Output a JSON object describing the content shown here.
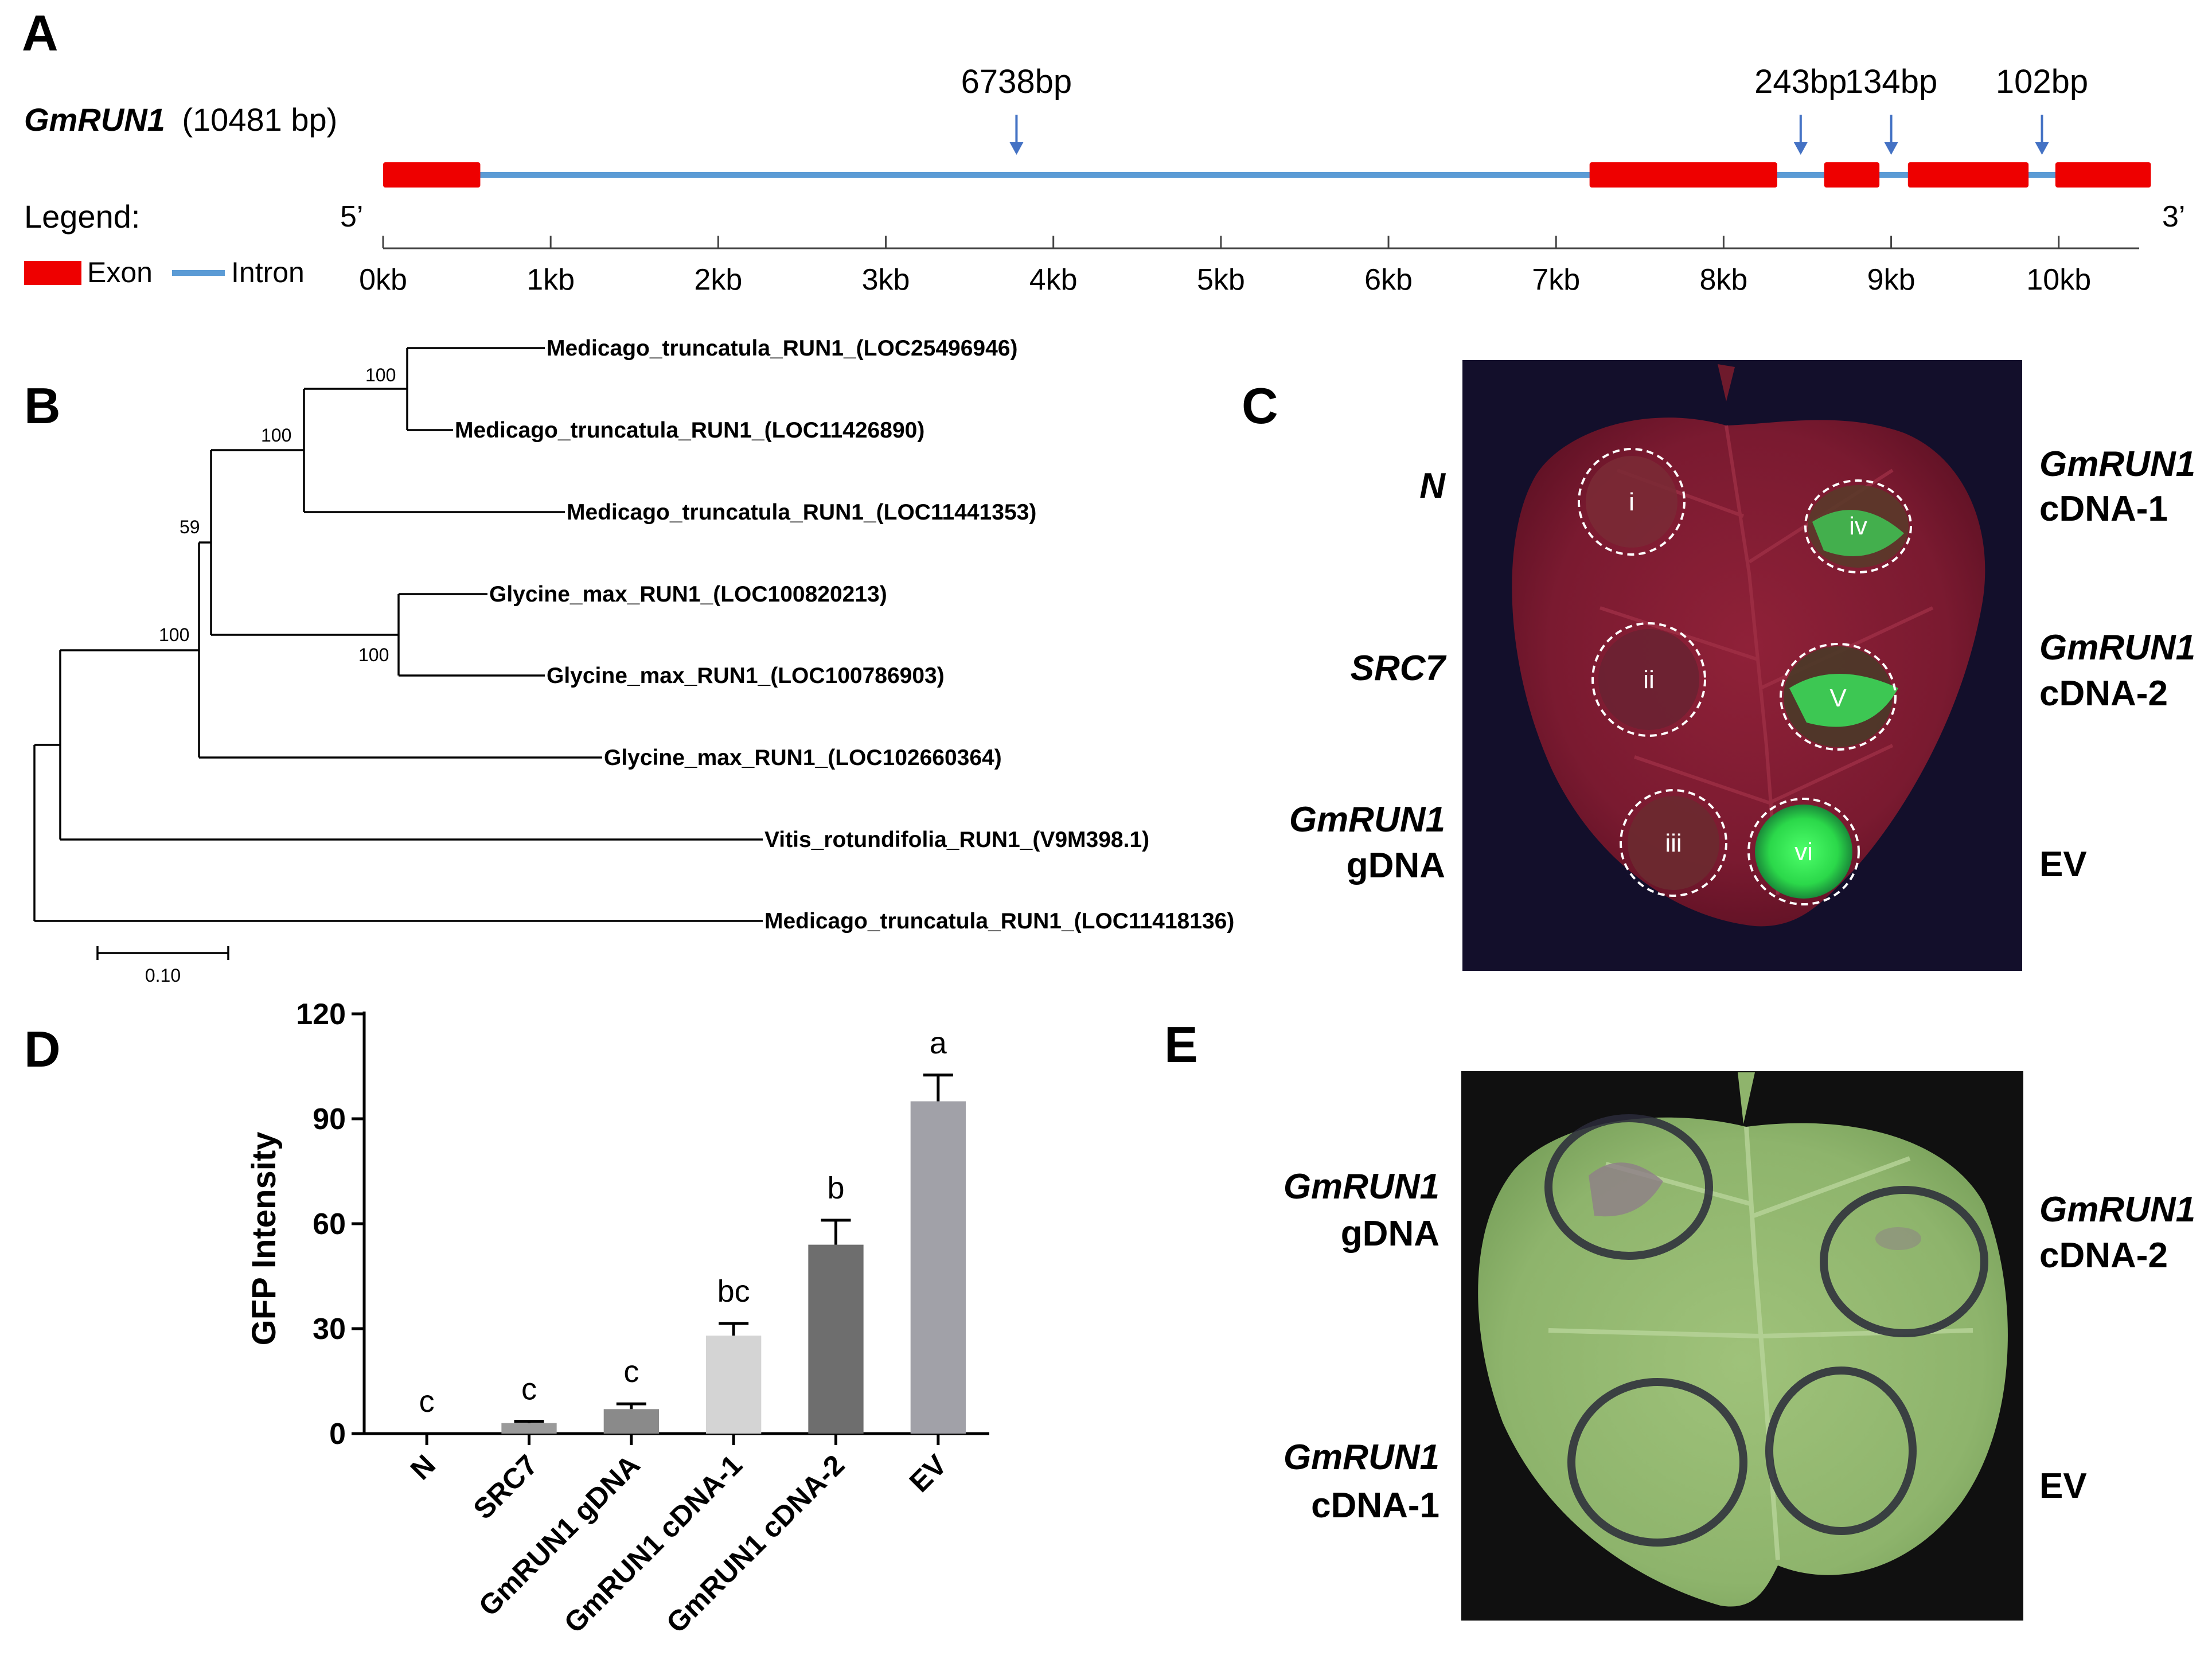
{
  "panels": {
    "A": "A",
    "B": "B",
    "C": "C",
    "D": "D",
    "E": "E"
  },
  "gene": {
    "name": "GmRUN1",
    "length": "(10481 bp)",
    "legend_label": "Legend:",
    "exon_label": "Exon",
    "intron_label": "Intron",
    "five_prime": "5’",
    "three_prime": "3’",
    "exon_color": "#ee0000",
    "intron_color": "#5b9bd5",
    "scale_ticks": [
      "0kb",
      "1kb",
      "2kb",
      "3kb",
      "4kb",
      "5kb",
      "6kb",
      "7kb",
      "8kb",
      "9kb",
      "10kb"
    ],
    "exons_kb": [
      [
        0.0,
        0.58
      ],
      [
        7.2,
        8.32
      ],
      [
        8.6,
        8.93
      ],
      [
        9.1,
        9.82
      ],
      [
        9.98,
        10.55
      ]
    ],
    "intron_marks": [
      {
        "label": "6738bp",
        "at_kb": 3.78
      },
      {
        "label": "243bp",
        "at_kb": 8.46
      },
      {
        "label": "134bp",
        "at_kb": 9.0
      },
      {
        "label": "102bp",
        "at_kb": 9.9
      }
    ]
  },
  "tree": {
    "taxa": [
      "Medicago_truncatula_RUN1_(LOC25496946)",
      "Medicago_truncatula_RUN1_(LOC11426890)",
      "Medicago_truncatula_RUN1_(LOC11441353)",
      "Glycine_max_RUN1_(LOC100820213)",
      "Glycine_max_RUN1_(LOC100786903)",
      "Glycine_max_RUN1_(LOC102660364)",
      "Vitis_rotundifolia_RUN1_(V9M398.1)",
      "Medicago_truncatula_RUN1_(LOC11418136)"
    ],
    "bootstrap": [
      "100",
      "100",
      "59",
      "100",
      "100"
    ],
    "scale_label": "0.10"
  },
  "panelC": {
    "left_labels": [
      [
        "N"
      ],
      [
        "SRC7"
      ],
      [
        "GmRUN1",
        "gDNA"
      ]
    ],
    "right_labels": [
      [
        "GmRUN1",
        "cDNA-1"
      ],
      [
        "GmRUN1",
        "cDNA-2"
      ],
      [
        "EV"
      ]
    ],
    "spot_labels": [
      "i",
      "ii",
      "iii",
      "iv",
      "V",
      "vi"
    ]
  },
  "panelE": {
    "left_labels": [
      [
        "GmRUN1",
        "gDNA"
      ],
      [
        "GmRUN1",
        "cDNA-1"
      ]
    ],
    "right_labels": [
      [
        "GmRUN1",
        "cDNA-2"
      ],
      [
        "EV"
      ]
    ]
  },
  "chart_data": {
    "type": "bar",
    "ylabel": "GFP Intensity",
    "xlabel": "",
    "ylim": [
      0,
      120
    ],
    "yticks": [
      "0",
      "30",
      "60",
      "90",
      "120"
    ],
    "categories": [
      "N",
      "SRC7",
      "GmRUN1 gDNA",
      "GmRUN1 cDNA-1",
      "GmRUN1 cDNA-2",
      "EV"
    ],
    "values": [
      0,
      3,
      7,
      28,
      54,
      95
    ],
    "errors": [
      0,
      0.5,
      1.5,
      3.5,
      7,
      7.5
    ],
    "letters": [
      "c",
      "c",
      "c",
      "bc",
      "b",
      "a"
    ],
    "colors": [
      "#9a9a9a",
      "#9a9a9a",
      "#8a8a8a",
      "#d4d4d4",
      "#6e6e6e",
      "#a1a1a8"
    ]
  }
}
